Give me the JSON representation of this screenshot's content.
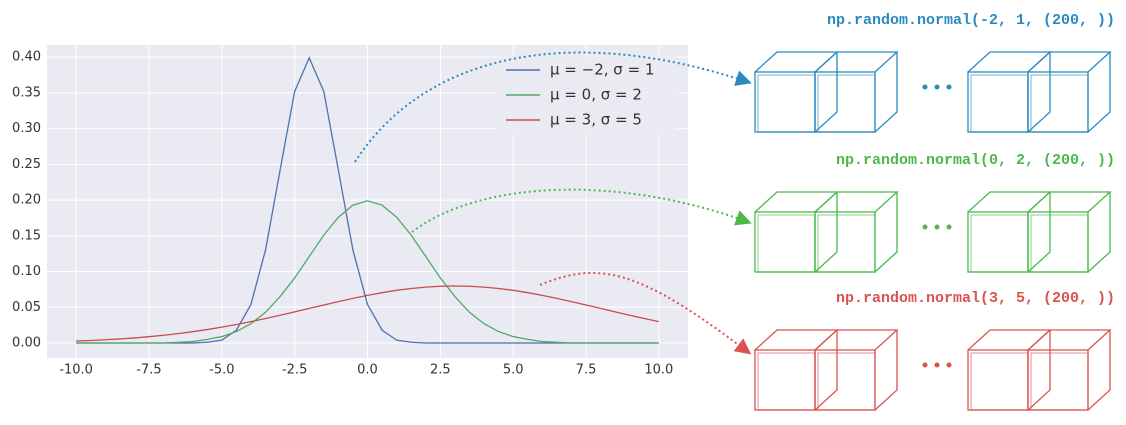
{
  "chart_data": {
    "type": "line",
    "x": [
      -10,
      -9.5,
      -9,
      -8.5,
      -8,
      -7.5,
      -7,
      -6.5,
      -6,
      -5.5,
      -5,
      -4.5,
      -4,
      -3.5,
      -3,
      -2.5,
      -2,
      -1.5,
      -1,
      -0.5,
      0,
      0.5,
      1,
      1.5,
      2,
      2.5,
      3,
      3.5,
      4,
      4.5,
      5,
      5.5,
      6,
      6.5,
      7,
      7.5,
      8,
      8.5,
      9,
      9.5,
      10
    ],
    "series": [
      {
        "name": "μ = −2, σ = 1",
        "color": "#4c72b0",
        "values": [
          0,
          0,
          0,
          0,
          0,
          0,
          0,
          0,
          0,
          0.001,
          0.004,
          0.018,
          0.054,
          0.13,
          0.242,
          0.352,
          0.399,
          0.352,
          0.242,
          0.13,
          0.054,
          0.018,
          0.004,
          0.001,
          0,
          0,
          0,
          0,
          0,
          0,
          0,
          0,
          0,
          0,
          0,
          0,
          0,
          0,
          0,
          0,
          0
        ]
      },
      {
        "name": "μ = 0, σ = 2",
        "color": "#55a868",
        "values": [
          0,
          0,
          0,
          0,
          0,
          0,
          0,
          0.001,
          0.002,
          0.005,
          0.009,
          0.016,
          0.027,
          0.043,
          0.065,
          0.091,
          0.121,
          0.151,
          0.176,
          0.193,
          0.199,
          0.193,
          0.176,
          0.151,
          0.121,
          0.091,
          0.065,
          0.043,
          0.027,
          0.016,
          0.009,
          0.005,
          0.002,
          0.001,
          0,
          0,
          0,
          0,
          0,
          0,
          0
        ]
      },
      {
        "name": "μ = 3, σ = 5",
        "color": "#c44e52",
        "values": [
          0.0027,
          0.0035,
          0.0045,
          0.0057,
          0.0071,
          0.0088,
          0.0108,
          0.0131,
          0.0158,
          0.0188,
          0.0222,
          0.0259,
          0.0299,
          0.0343,
          0.0388,
          0.0436,
          0.0484,
          0.0532,
          0.0579,
          0.0625,
          0.0666,
          0.0704,
          0.0737,
          0.0763,
          0.0782,
          0.0794,
          0.0798,
          0.0794,
          0.0782,
          0.0763,
          0.0737,
          0.0704,
          0.0666,
          0.0625,
          0.0579,
          0.0532,
          0.0484,
          0.0436,
          0.0388,
          0.0343,
          0.0299
        ]
      }
    ],
    "xlim": [
      -11,
      11
    ],
    "ylim": [
      -0.021,
      0.417
    ],
    "xticks": [
      {
        "value": -10,
        "label": "-10.0"
      },
      {
        "value": -7.5,
        "label": "-7.5"
      },
      {
        "value": -5,
        "label": "-5.0"
      },
      {
        "value": -2.5,
        "label": "-2.5"
      },
      {
        "value": 0,
        "label": "0.0"
      },
      {
        "value": 2.5,
        "label": "2.5"
      },
      {
        "value": 5,
        "label": "5.0"
      },
      {
        "value": 7.5,
        "label": "7.5"
      },
      {
        "value": 10,
        "label": "10.0"
      }
    ],
    "yticks": [
      {
        "value": 0,
        "label": "0.00"
      },
      {
        "value": 0.05,
        "label": "0.05"
      },
      {
        "value": 0.1,
        "label": "0.10"
      },
      {
        "value": 0.15,
        "label": "0.15"
      },
      {
        "value": 0.2,
        "label": "0.20"
      },
      {
        "value": 0.25,
        "label": "0.25"
      },
      {
        "value": 0.3,
        "label": "0.30"
      },
      {
        "value": 0.35,
        "label": "0.35"
      },
      {
        "value": 0.4,
        "label": "0.40"
      }
    ],
    "grid": true,
    "legend": "upper right",
    "annotations": [
      {
        "text": "np.random.normal(-2, 1, (200, ))",
        "color": "#2a8ac0"
      },
      {
        "text": "np.random.normal(0, 2, (200, ))",
        "color": "#4cb84c"
      },
      {
        "text": "np.random.normal(3, 5, (200, ))",
        "color": "#d9534f"
      }
    ]
  }
}
